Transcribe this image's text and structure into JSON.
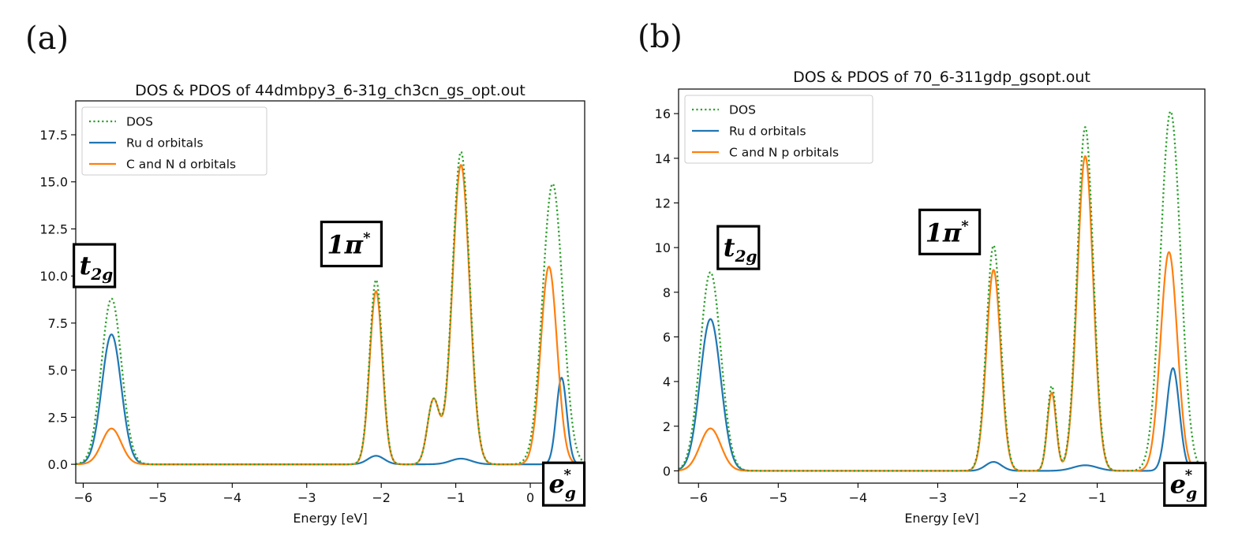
{
  "chart_data": [
    {
      "type": "line",
      "panel_label": "(a)",
      "title": "DOS & PDOS of 44dmbpy3_6-31g_ch3cn_gs_opt.out",
      "xlabel": "Energy [eV]",
      "ylabel": "",
      "xlim": [
        -6.1,
        0.73
      ],
      "ylim": [
        -1.0,
        19.3
      ],
      "xticks": [
        -6,
        -5,
        -4,
        -3,
        -2,
        -1,
        0
      ],
      "xtick_labels": [
        "−6",
        "−5",
        "−4",
        "−3",
        "−2",
        "−1",
        "0"
      ],
      "yticks": [
        0,
        2.5,
        5,
        7.5,
        10,
        12.5,
        15,
        17.5
      ],
      "ytick_labels": [
        "0.0",
        "2.5",
        "5.0",
        "7.5",
        "10.0",
        "12.5",
        "15.0",
        "17.5"
      ],
      "legend": {
        "position": "top-left",
        "entries": [
          "DOS",
          "Ru d orbitals",
          "C and N d orbitals"
        ]
      },
      "series": [
        {
          "name": "DOS",
          "style": "dotted",
          "color": "#2ca02c",
          "peaks": [
            [
              -5.62,
              8.8,
              0.135
            ],
            [
              -2.07,
              9.8,
              0.085
            ],
            [
              -1.3,
              3.4,
              0.08
            ],
            [
              -0.93,
              16.6,
              0.115
            ],
            [
              0.3,
              14.9,
              0.135
            ]
          ]
        },
        {
          "name": "Ru d orbitals",
          "style": "solid",
          "color": "#1f77b4",
          "peaks": [
            [
              -5.62,
              6.9,
              0.13
            ],
            [
              -2.07,
              0.45,
              0.11
            ],
            [
              -0.93,
              0.3,
              0.14
            ],
            [
              0.42,
              4.6,
              0.07
            ]
          ]
        },
        {
          "name": "C and N d orbitals",
          "style": "solid",
          "color": "#ff7f0e",
          "peaks": [
            [
              -5.62,
              1.9,
              0.13
            ],
            [
              -2.07,
              9.2,
              0.085
            ],
            [
              -1.3,
              3.4,
              0.08
            ],
            [
              -0.93,
              15.9,
              0.115
            ],
            [
              0.25,
              10.5,
              0.11
            ]
          ]
        }
      ],
      "annotations": [
        {
          "main": "t",
          "sub": "2g",
          "sup": "",
          "x": -5.85,
          "y": 10.55
        },
        {
          "main": "1π",
          "sub": "",
          "sup": "*",
          "x": -2.4,
          "y": 11.7
        },
        {
          "main": "e",
          "sub": "g",
          "sup": "*",
          "x": 0.45,
          "y": -1.05
        }
      ]
    },
    {
      "type": "line",
      "panel_label": "(b)",
      "title": "DOS & PDOS of 70_6-311gdp_gsopt.out",
      "xlabel": "Energy [eV]",
      "ylabel": "",
      "xlim": [
        -6.25,
        0.35
      ],
      "ylim": [
        -0.55,
        17.1
      ],
      "xticks": [
        -6,
        -5,
        -4,
        -3,
        -2,
        -1
      ],
      "xtick_labels": [
        "−6",
        "−5",
        "−4",
        "−3",
        "−2",
        "−1"
      ],
      "yticks": [
        0,
        2,
        4,
        6,
        8,
        10,
        12,
        14,
        16
      ],
      "ytick_labels": [
        "0",
        "2",
        "4",
        "6",
        "8",
        "10",
        "12",
        "14",
        "16"
      ],
      "legend": {
        "position": "top-left",
        "entries": [
          "DOS",
          "Ru d orbitals",
          "C and N p orbitals"
        ]
      },
      "series": [
        {
          "name": "DOS",
          "style": "dotted",
          "color": "#2ca02c",
          "peaks": [
            [
              -5.85,
              8.9,
              0.13
            ],
            [
              -2.3,
              10.1,
              0.09
            ],
            [
              -1.57,
              3.8,
              0.055
            ],
            [
              -1.15,
              15.4,
              0.1
            ],
            [
              -0.08,
              16.1,
              0.125
            ]
          ]
        },
        {
          "name": "Ru d orbitals",
          "style": "solid",
          "color": "#1f77b4",
          "peaks": [
            [
              -5.85,
              6.8,
              0.13
            ],
            [
              -2.3,
              0.4,
              0.1
            ],
            [
              -1.15,
              0.25,
              0.15
            ],
            [
              -0.05,
              4.6,
              0.08
            ]
          ]
        },
        {
          "name": "C and N p orbitals",
          "style": "solid",
          "color": "#ff7f0e",
          "peaks": [
            [
              -5.85,
              1.9,
              0.13
            ],
            [
              -2.3,
              9.0,
              0.09
            ],
            [
              -1.57,
              3.5,
              0.055
            ],
            [
              -1.15,
              14.1,
              0.1
            ],
            [
              -0.1,
              9.8,
              0.105
            ]
          ]
        }
      ],
      "annotations": [
        {
          "main": "t",
          "sub": "2g",
          "sup": "",
          "x": -5.5,
          "y": 10.0
        },
        {
          "main": "1π",
          "sub": "",
          "sup": "*",
          "x": -2.85,
          "y": 10.7
        },
        {
          "main": "e",
          "sub": "g",
          "sup": "*",
          "x": 0.1,
          "y": -0.6
        }
      ]
    }
  ]
}
